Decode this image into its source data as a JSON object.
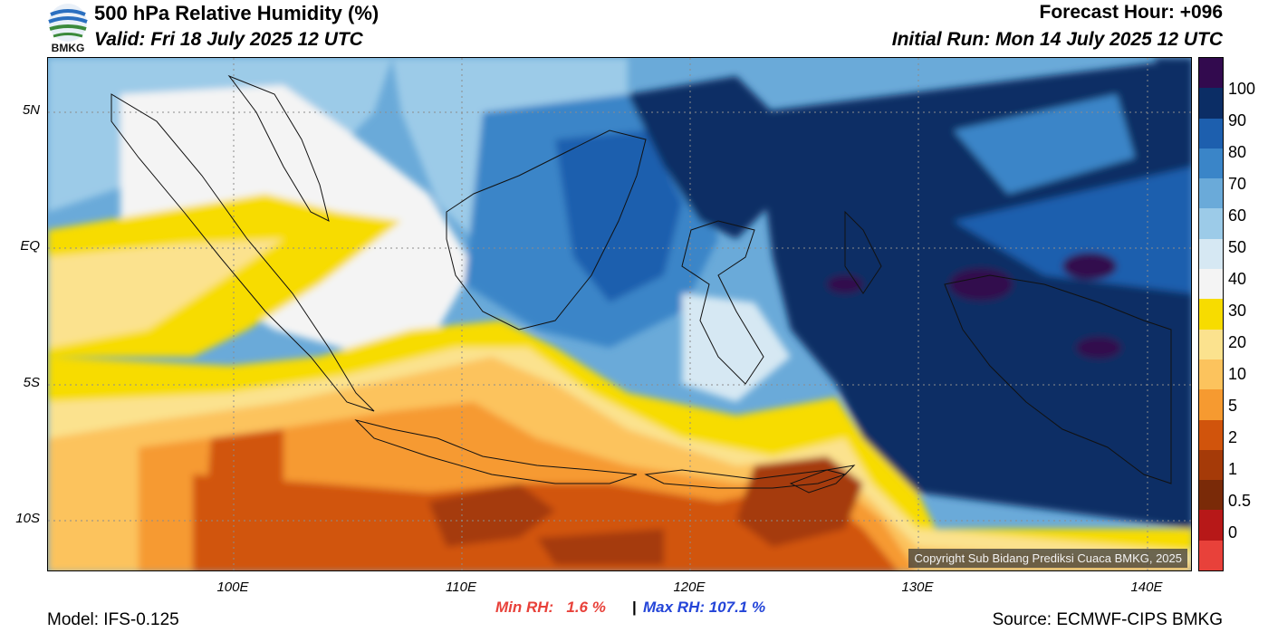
{
  "header": {
    "title": "500 hPa Relative Humidity (%)",
    "valid": "Valid: Fri 18 July 2025 12 UTC",
    "forecast_hour": "Forecast Hour: +096",
    "initial_run": "Initial Run: Mon 14 July 2025 12 UTC",
    "logo_text": "BMKG"
  },
  "map": {
    "copyright": "Copyright Sub Bidang Prediksi Cuaca BMKG, 2025",
    "lat_labels": [
      "5N",
      "EQ",
      "5S",
      "10S"
    ],
    "lon_labels": [
      "100E",
      "110E",
      "120E",
      "130E",
      "140E"
    ]
  },
  "colorbar": {
    "labels": [
      "100",
      "90",
      "80",
      "70",
      "60",
      "50",
      "40",
      "30",
      "20",
      "10",
      "5",
      "2",
      "1",
      "0.5",
      "0"
    ],
    "colors": [
      "#320a4e",
      "#0b2d65",
      "#1d5fae",
      "#3a85c8",
      "#6aaad9",
      "#9ccbe8",
      "#d6e8f3",
      "#f4f4f4",
      "#f7dc00",
      "#fbe28e",
      "#fcc35d",
      "#f69a30",
      "#d1540c",
      "#a53a08",
      "#7a2a08",
      "#b71818",
      "#e8413a"
    ]
  },
  "stats": {
    "min_rh": "Min RH:   1.6 %",
    "separator": "|",
    "max_rh": "Max RH: 107.1 %"
  },
  "footer": {
    "model": "Model: IFS-0.125",
    "source": "Source: ECMWF-CIPS BMKG"
  }
}
